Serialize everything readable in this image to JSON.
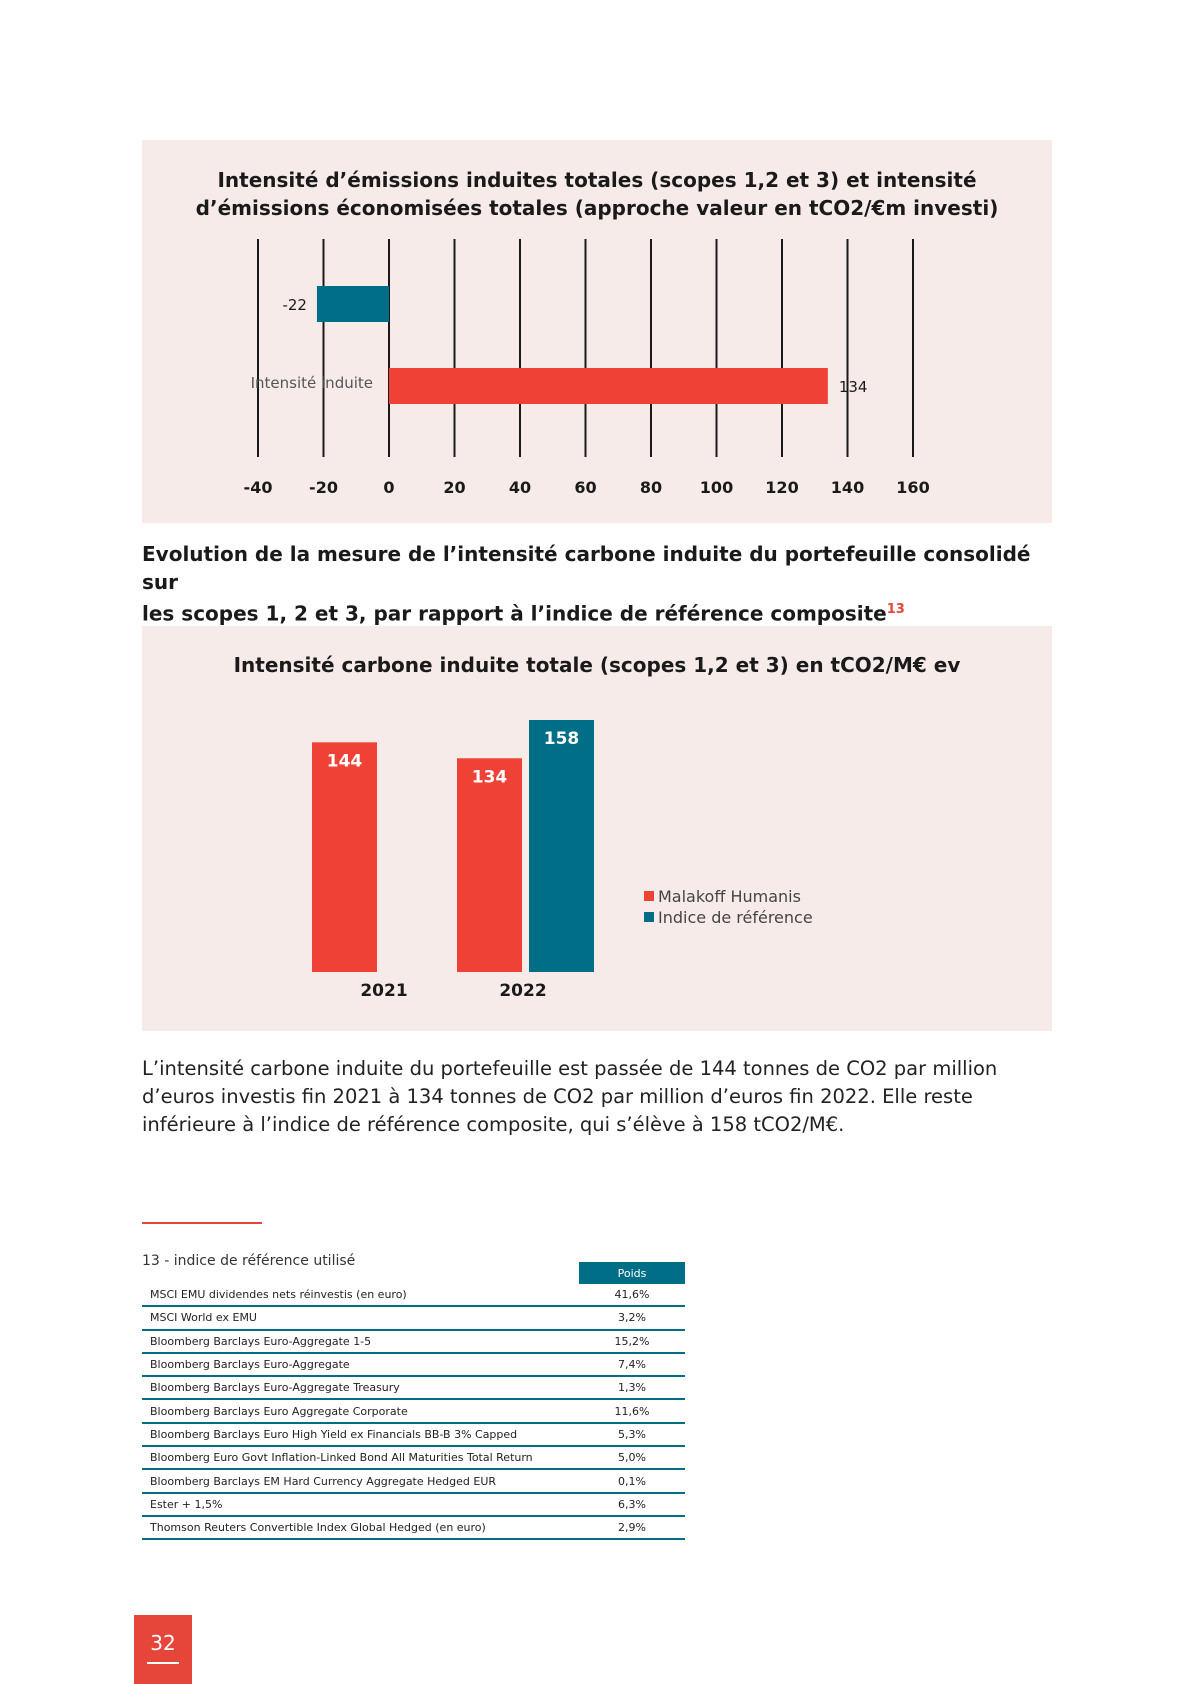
{
  "chart1": {
    "title_line1": "Intensité d’émissions induites totales (scopes 1,2 et 3) et intensité",
    "title_line2": "d’émissions économisées totales (approche valeur en tCO2/€m investi)"
  },
  "section_heading": {
    "line1": "Evolution de la mesure de l’intensité carbone induite du portefeuille consolidé sur",
    "line2": "les scopes 1, 2 et 3, par rapport à l’indice de référence composite",
    "footnote_ref": "13"
  },
  "chart2": {
    "title": "Intensité carbone induite totale (scopes 1,2 et 3) en tCO2/M€ ev"
  },
  "chart_data": [
    {
      "type": "bar",
      "orientation": "horizontal",
      "title": "Intensité d’émissions induites totales (scopes 1,2 et 3) et intensité d’émissions économisées totales (approche valeur en tCO2/€m investi)",
      "categories": [
        "",
        "Intensité induite"
      ],
      "values": [
        -22,
        134
      ],
      "colors": [
        "#006e86",
        "#ef4136"
      ],
      "value_labels": [
        "-22",
        "134"
      ],
      "xlim": [
        -40,
        160
      ],
      "xticks": [
        "-40",
        "-20",
        "0",
        "20",
        "40",
        "60",
        "80",
        "100",
        "120",
        "140",
        "160"
      ],
      "grid": "vertical"
    },
    {
      "type": "bar",
      "title": "Intensité carbone induite totale (scopes 1,2 et 3) en tCO2/M€ ev",
      "categories": [
        "2021",
        "2022"
      ],
      "series": [
        {
          "name": "Malakoff Humanis",
          "color": "#ef4136",
          "values": [
            144,
            134
          ]
        },
        {
          "name": "Indice de référence",
          "color": "#006e86",
          "values": [
            null,
            158
          ]
        }
      ],
      "value_labels": [
        [
          "144",
          "134"
        ],
        [
          "",
          "158"
        ]
      ],
      "ylim": [
        0,
        170
      ],
      "legend": "right"
    }
  ],
  "body_text": {
    "line1": "L’intensité carbone induite du portefeuille est passée de 144 tonnes de CO2 par million",
    "line2": "d’euros investis fin 2021 à 134 tonnes de CO2 par million d’euros fin 2022. Elle reste",
    "line3": "inférieure à l’indice de référence composite, qui s’élève à 158 tCO2/M€."
  },
  "footnote": {
    "label": "13 - indice de référence utilisé",
    "column_header": "Poids",
    "rows": [
      {
        "name": "MSCI EMU dividendes nets réinvestis (en euro)",
        "weight": "41,6%"
      },
      {
        "name": "MSCI World ex EMU",
        "weight": "3,2%"
      },
      {
        "name": "Bloomberg Barclays Euro-Aggregate 1-5",
        "weight": "15,2%"
      },
      {
        "name": "Bloomberg Barclays Euro-Aggregate",
        "weight": "7,4%"
      },
      {
        "name": "Bloomberg Barclays Euro-Aggregate Treasury",
        "weight": "1,3%"
      },
      {
        "name": "Bloomberg Barclays Euro Aggregate Corporate",
        "weight": "11,6%"
      },
      {
        "name": "Bloomberg Barclays Euro High Yield ex Financials BB-B 3% Capped",
        "weight": "5,3%"
      },
      {
        "name": "Bloomberg Euro Govt Inflation-Linked Bond All Maturities Total Return",
        "weight": "5,0%"
      },
      {
        "name": "Bloomberg Barclays EM Hard Currency Aggregate Hedged EUR",
        "weight": "0,1%"
      },
      {
        "name": "Ester + 1,5%",
        "weight": "6,3%"
      },
      {
        "name": "Thomson Reuters Convertible Index Global Hedged (en euro)",
        "weight": "2,9%"
      }
    ]
  },
  "page_number": "32"
}
